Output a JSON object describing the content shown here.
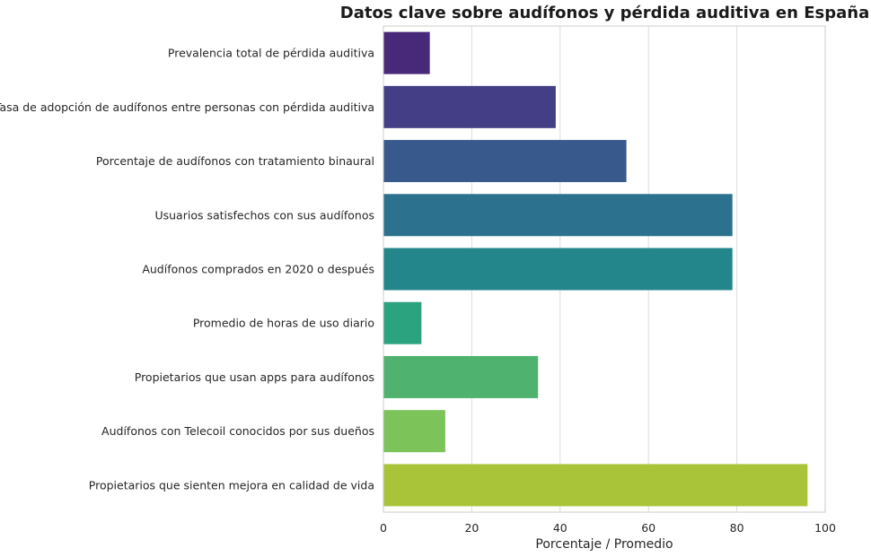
{
  "chart_data": {
    "type": "bar",
    "orientation": "horizontal",
    "title": "Datos clave sobre audífonos y pérdida auditiva en España",
    "xlabel": "Porcentaje / Promedio",
    "ylabel": "",
    "xlim": [
      0,
      100
    ],
    "xticks": [
      0,
      20,
      40,
      60,
      80,
      100
    ],
    "grid": true,
    "categories": [
      "Prevalencia total de pérdida auditiva",
      "Tasa de adopción de audífonos entre personas con pérdida auditiva",
      "Porcentaje de audífonos con tratamiento binaural",
      "Usuarios satisfechos con sus audífonos",
      "Audífonos comprados en 2020 o después",
      "Promedio de horas de uso diario",
      "Propietarios que usan apps para audífonos",
      "Audífonos con Telecoil conocidos por sus dueños",
      "Propietarios que sienten mejora en calidad de vida"
    ],
    "values": [
      10.5,
      39,
      55,
      79,
      79,
      8.6,
      35,
      14,
      96
    ],
    "colors": [
      "#482878",
      "#433e85",
      "#38598c",
      "#2c728e",
      "#22868b",
      "#2ca37f",
      "#4fb36f",
      "#7cc45a",
      "#aac43a"
    ]
  }
}
